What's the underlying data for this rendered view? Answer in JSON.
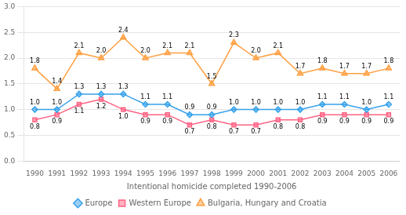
{
  "chart_data": {
    "type": "line",
    "xlabel": "Intentional homicide completed 1990-2006",
    "categories": [
      "1990",
      "1991",
      "1992",
      "1993",
      "1994",
      "1995",
      "1996",
      "1997",
      "1998",
      "1999",
      "2000",
      "2001",
      "2002",
      "2003",
      "2004",
      "2005",
      "2006"
    ],
    "series": [
      {
        "name": "Europe",
        "marker": "diamond",
        "values": [
          1.0,
          1.0,
          1.3,
          1.3,
          1.3,
          1.1,
          1.1,
          0.9,
          0.9,
          1.0,
          1.0,
          1.0,
          1.0,
          1.1,
          1.1,
          1.0,
          1.1
        ],
        "value_labels": [
          "1.0",
          "1.0",
          "1.3",
          "1.3",
          "1.3",
          "1.1",
          "1.1",
          "0.9",
          "0.9",
          "1.0",
          "1.0",
          "1.0",
          "1.0",
          "1.1",
          "1.1",
          "1.0",
          "1.1"
        ]
      },
      {
        "name": "Western Europe",
        "marker": "square",
        "values": [
          0.8,
          0.9,
          1.1,
          1.2,
          1.0,
          0.9,
          0.9,
          0.7,
          0.8,
          0.7,
          0.7,
          0.8,
          0.8,
          0.9,
          0.9,
          0.9,
          0.9
        ],
        "value_labels": [
          "0.8",
          "0.9",
          "1.1",
          "1.2",
          "1.0",
          "0.9",
          "0.9",
          "0.7",
          "0.8",
          "0.7",
          "0.7",
          "0.8",
          "0.8",
          "0.9",
          "0.9",
          "0.9",
          "0.9"
        ]
      },
      {
        "name": "Bulgaria, Hungary and Croatia",
        "marker": "triangle",
        "values": [
          1.8,
          1.4,
          2.1,
          2.0,
          2.4,
          2.0,
          2.1,
          2.1,
          1.5,
          2.3,
          2.0,
          2.1,
          1.7,
          1.8,
          1.7,
          1.7,
          1.8
        ],
        "value_labels": [
          "1.8",
          "1.4",
          "2.1",
          "2.0",
          "2.4",
          "2.0",
          "2.1",
          "2.1",
          "1.5",
          "2.3",
          "2.0",
          "2.1",
          "1.7",
          "1.8",
          "1.7",
          "1.7",
          "1.8"
        ]
      }
    ],
    "ylim": [
      0.0,
      3.0
    ],
    "yticks": [
      {
        "value": 0.0,
        "label": "0.0"
      },
      0.5,
      {
        "value": 1.0,
        "label": "1.0"
      },
      1.5,
      {
        "value": 2.0,
        "label": "2.0"
      },
      2.5,
      {
        "value": 3.0,
        "label": "3.0"
      }
    ],
    "grid": "y",
    "legend": "bottom",
    "data_labels": true
  }
}
